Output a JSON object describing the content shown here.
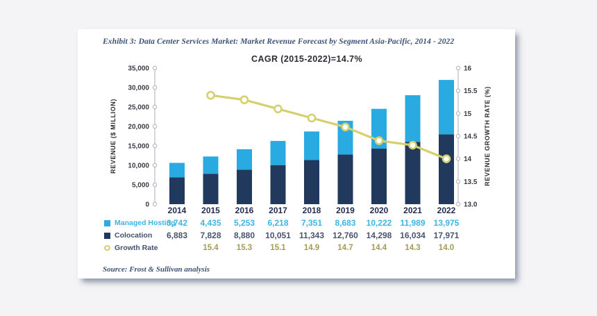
{
  "page": {
    "exhibit_title": "Exhibit 3: Data Center Services Market: Market Revenue Forecast by Segment Asia-Pacific, 2014 - 2022",
    "source": "Source: Frost & Sullivan analysis"
  },
  "chart_data": {
    "type": "bar",
    "subtype": "stacked-bar-with-line",
    "title": "CAGR (2015-2022)=14.7%",
    "categories": [
      "2014",
      "2015",
      "2016",
      "2017",
      "2018",
      "2019",
      "2020",
      "2021",
      "2022"
    ],
    "series": [
      {
        "name": "Managed Hosting",
        "type": "bar",
        "stack": "revenue",
        "axis": "left",
        "color": "#29abe2",
        "values": [
          3742,
          4435,
          5253,
          6218,
          7351,
          8683,
          10222,
          11989,
          13975
        ]
      },
      {
        "name": "Colocation",
        "type": "bar",
        "stack": "revenue",
        "axis": "left",
        "color": "#21395c",
        "values": [
          6883,
          7828,
          8880,
          10051,
          11343,
          12760,
          14298,
          16034,
          17971
        ]
      },
      {
        "name": "Growth Rate",
        "type": "line",
        "axis": "right",
        "color": "#d6cf6d",
        "marker": "open-circle",
        "values": [
          null,
          15.4,
          15.3,
          15.1,
          14.9,
          14.7,
          14.4,
          14.3,
          14.0
        ]
      }
    ],
    "left_axis": {
      "label": "REVENUE ($ MILLION)",
      "min": 0,
      "max": 35000,
      "step": 5000,
      "tick_labels": [
        "35,000",
        "30,000",
        "25,000",
        "20,000",
        "15,000",
        "10,000",
        "5,000",
        "0"
      ]
    },
    "right_axis": {
      "label": "REVENUE GROWTH RATE (%)",
      "min": 13,
      "max": 16,
      "step": 0.5,
      "tick_labels": [
        "16",
        "15.5",
        "15",
        "14.5",
        "14",
        "13.5",
        "13.0"
      ]
    },
    "grid": "off",
    "legend_position": "bottom-left",
    "table_text_colors": {
      "year": "#1f2c4e",
      "managed_hosting": "#3cb4e5",
      "colocation": "#4a546e",
      "growth_rate": "#a29c55"
    }
  }
}
